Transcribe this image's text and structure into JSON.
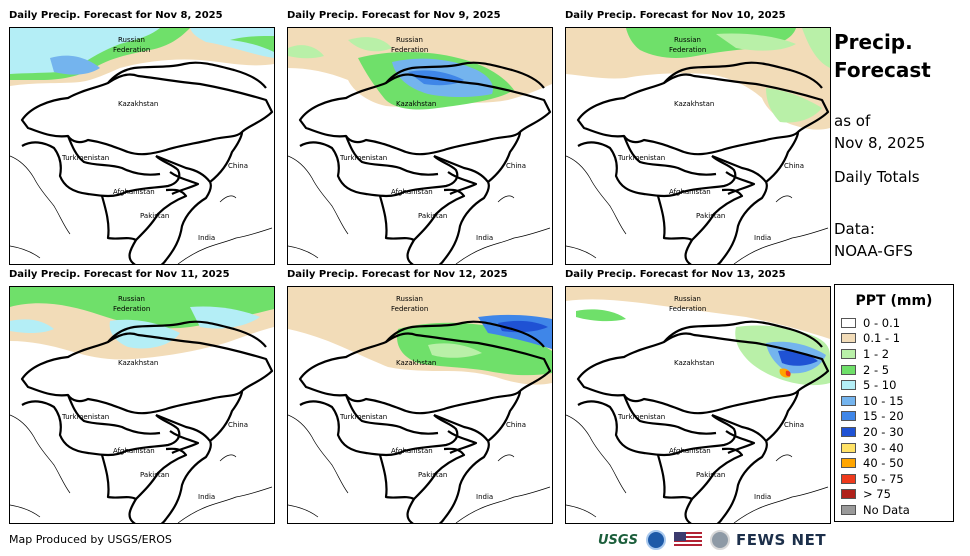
{
  "panels": [
    {
      "title": "Daily Precip. Forecast for Nov 8, 2025"
    },
    {
      "title": "Daily Precip. Forecast for Nov 9, 2025"
    },
    {
      "title": "Daily Precip. Forecast for Nov 10, 2025"
    },
    {
      "title": "Daily Precip. Forecast for Nov 11, 2025"
    },
    {
      "title": "Daily Precip. Forecast for Nov 12, 2025"
    },
    {
      "title": "Daily Precip. Forecast for Nov 13, 2025"
    }
  ],
  "map_labels": {
    "russia_1": "Russian",
    "russia_2": "Federation",
    "kazakhstan": "Kazakhstan",
    "turkmenistan": "Turkmenistan",
    "china": "China",
    "afghanistan": "Afghanistan",
    "pakistan": "Pakistan",
    "india": "India"
  },
  "info": {
    "title_1": "Precip.",
    "title_2": "Forecast",
    "as_of": "as of",
    "date": "Nov 8, 2025",
    "daily": "Daily Totals",
    "data_label": "Data:",
    "data_source": "NOAA-GFS"
  },
  "legend": {
    "title": "PPT (mm)",
    "items": [
      {
        "label": "0 - 0.1",
        "color": "#ffffff"
      },
      {
        "label": "0.1 - 1",
        "color": "#f2dcb8"
      },
      {
        "label": "1 - 2",
        "color": "#b9f0a8"
      },
      {
        "label": "2 - 5",
        "color": "#6fe06a"
      },
      {
        "label": "5 - 10",
        "color": "#b4eef6"
      },
      {
        "label": "10 - 15",
        "color": "#74b4ee"
      },
      {
        "label": "15 - 20",
        "color": "#3f86e8"
      },
      {
        "label": "20 - 30",
        "color": "#1f52d4"
      },
      {
        "label": "30 - 40",
        "color": "#ffe266"
      },
      {
        "label": "40 - 50",
        "color": "#ffa500"
      },
      {
        "label": "50 - 75",
        "color": "#ee3a1c"
      },
      {
        "label": "> 75",
        "color": "#b0211a"
      },
      {
        "label": "No Data",
        "color": "#9a9a9a"
      }
    ]
  },
  "footer": {
    "credit": "Map Produced by USGS/EROS",
    "usgs": "USGS",
    "fews": "FEWS NET"
  }
}
